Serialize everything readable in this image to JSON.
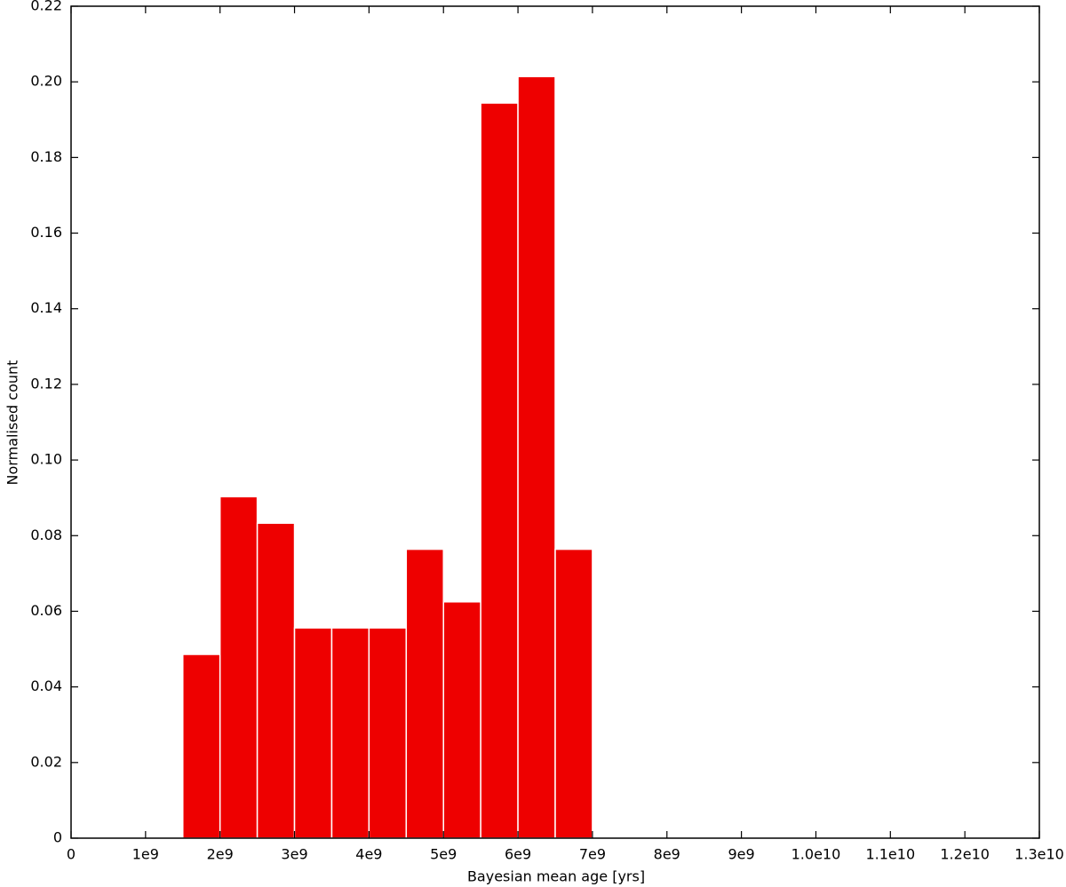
{
  "chart_data": {
    "type": "histogram",
    "xlabel": "Bayesian mean age [yrs]",
    "ylabel": "Normalised count",
    "bins": [
      1500000000,
      2000000000,
      2500000000,
      3000000000,
      3500000000,
      4000000000,
      4500000000,
      5000000000,
      5500000000,
      6000000000,
      6500000000,
      7000000000
    ],
    "values": [
      0.0486,
      0.0903,
      0.0833,
      0.0556,
      0.0556,
      0.0556,
      0.0764,
      0.0625,
      0.1944,
      0.2014,
      0.0764
    ],
    "color": "#ee0000",
    "xlim": [
      0,
      13000000000
    ],
    "ylim": [
      0,
      0.22
    ],
    "xticks": [
      0,
      {
        "value": 1000000000,
        "label": "1e9"
      },
      {
        "value": 2000000000,
        "label": "2e9"
      },
      {
        "value": 3000000000,
        "label": "3e9"
      },
      {
        "value": 4000000000,
        "label": "4e9"
      },
      {
        "value": 5000000000,
        "label": "5e9"
      },
      {
        "value": 6000000000,
        "label": "6e9"
      },
      {
        "value": 7000000000,
        "label": "7e9"
      },
      {
        "value": 8000000000,
        "label": "8e9"
      },
      {
        "value": 9000000000,
        "label": "9e9"
      },
      {
        "value": 10000000000,
        "label": "1.0e10"
      },
      {
        "value": 11000000000,
        "label": "1.1e10"
      },
      {
        "value": 12000000000,
        "label": "1.2e10"
      },
      {
        "value": 13000000000,
        "label": "1.3e10"
      }
    ],
    "yticks": [
      0,
      0.02,
      0.04,
      0.06,
      0.08,
      {
        "value": 0.1,
        "label": "0.10"
      },
      0.12,
      0.14,
      0.16,
      0.18,
      {
        "value": 0.2,
        "label": "0.20"
      },
      0.22
    ]
  }
}
